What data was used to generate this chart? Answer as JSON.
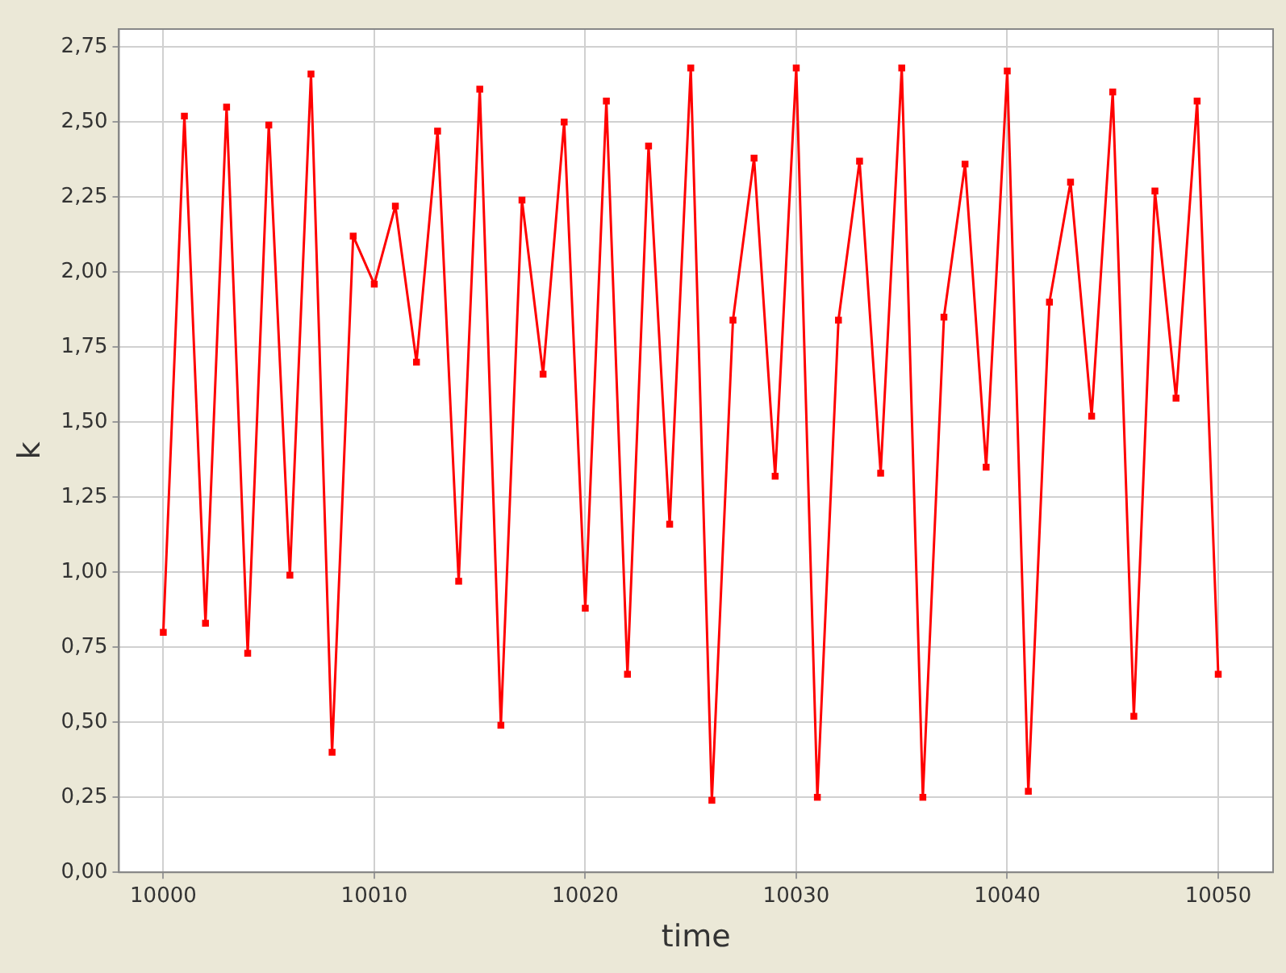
{
  "chart_data": {
    "type": "line",
    "xlabel": "time",
    "ylabel": "k",
    "color": "#ff0000",
    "marker": "square",
    "grid": true,
    "legend": false,
    "x": [
      10000,
      10001,
      10002,
      10003,
      10004,
      10005,
      10006,
      10007,
      10008,
      10009,
      10010,
      10011,
      10012,
      10013,
      10014,
      10015,
      10016,
      10017,
      10018,
      10019,
      10020,
      10021,
      10022,
      10023,
      10024,
      10025,
      10026,
      10027,
      10028,
      10029,
      10030,
      10031,
      10032,
      10033,
      10034,
      10035,
      10036,
      10037,
      10038,
      10039,
      10040,
      10041,
      10042,
      10043,
      10044,
      10045,
      10046,
      10047,
      10048,
      10049,
      10050
    ],
    "values": [
      0.8,
      2.52,
      0.83,
      2.55,
      0.73,
      2.49,
      0.99,
      2.66,
      0.4,
      2.12,
      1.96,
      2.22,
      1.7,
      2.47,
      0.97,
      2.61,
      0.49,
      2.24,
      1.66,
      2.5,
      0.88,
      2.57,
      0.66,
      2.42,
      1.16,
      2.68,
      0.24,
      1.84,
      2.38,
      1.32,
      2.68,
      0.25,
      1.84,
      2.37,
      1.33,
      2.68,
      0.25,
      1.85,
      2.36,
      1.35,
      2.67,
      0.27,
      1.9,
      2.3,
      1.52,
      2.6,
      0.52,
      2.27,
      1.58,
      2.57,
      0.66
    ],
    "xlim": [
      9997.9,
      10052.6
    ],
    "xticks": [
      10000,
      10010,
      10020,
      10030,
      10040,
      10050
    ],
    "ylim": [
      0,
      2.81
    ],
    "yticks": [
      {
        "value": 0,
        "label": "0,00"
      },
      {
        "value": 0.25,
        "label": "0,25"
      },
      {
        "value": 0.5,
        "label": "0,50"
      },
      {
        "value": 0.75,
        "label": "0,75"
      },
      {
        "value": 1,
        "label": "1,00"
      },
      {
        "value": 1.25,
        "label": "1,25"
      },
      {
        "value": 1.5,
        "label": "1,50"
      },
      {
        "value": 1.75,
        "label": "1,75"
      },
      {
        "value": 2,
        "label": "2,00"
      },
      {
        "value": 2.25,
        "label": "2,25"
      },
      {
        "value": 2.5,
        "label": "2,50"
      },
      {
        "value": 2.75,
        "label": "2,75"
      }
    ]
  }
}
